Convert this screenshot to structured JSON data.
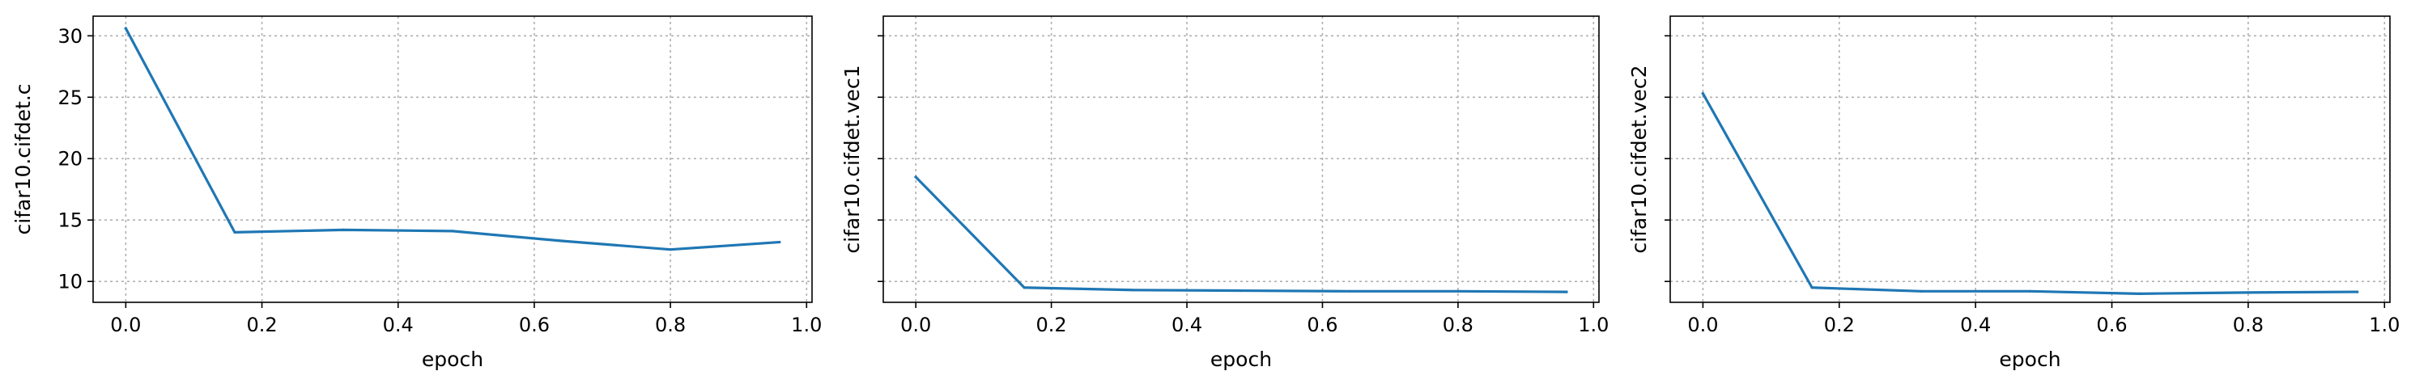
{
  "figure": {
    "line_color": "#1f77b4",
    "grid_color": "#b0b0b0",
    "grid": true,
    "shared_y_axis": true
  },
  "chart_data": [
    {
      "type": "line",
      "xlabel": "epoch",
      "ylabel": "cifar10.cifdet.c",
      "xlim": [
        -0.048,
        1.008
      ],
      "ylim": [
        8.3,
        31.6
      ],
      "xticks": [
        0.0,
        0.2,
        0.4,
        0.6,
        0.8,
        1.0
      ],
      "xtick_labels": [
        "0.0",
        "0.2",
        "0.4",
        "0.6",
        "0.8",
        "1.0"
      ],
      "yticks": [
        10,
        15,
        20,
        25,
        30
      ],
      "ytick_labels": [
        "10",
        "15",
        "20",
        "25",
        "30"
      ],
      "show_ytick_labels": true,
      "x": [
        0.0,
        0.16,
        0.32,
        0.48,
        0.64,
        0.8,
        0.96
      ],
      "y": [
        30.6,
        14.0,
        14.2,
        14.1,
        13.3,
        12.6,
        13.2
      ]
    },
    {
      "type": "line",
      "xlabel": "epoch",
      "ylabel": "cifar10.cifdet.vec1",
      "xlim": [
        -0.048,
        1.008
      ],
      "ylim": [
        8.3,
        31.6
      ],
      "xticks": [
        0.0,
        0.2,
        0.4,
        0.6,
        0.8,
        1.0
      ],
      "xtick_labels": [
        "0.0",
        "0.2",
        "0.4",
        "0.6",
        "0.8",
        "1.0"
      ],
      "yticks": [
        10,
        15,
        20,
        25,
        30
      ],
      "ytick_labels": [
        "",
        "",
        "",
        "",
        ""
      ],
      "show_ytick_labels": false,
      "x": [
        0.0,
        0.16,
        0.32,
        0.48,
        0.64,
        0.8,
        0.96
      ],
      "y": [
        18.5,
        9.5,
        9.3,
        9.25,
        9.2,
        9.2,
        9.15
      ]
    },
    {
      "type": "line",
      "xlabel": "epoch",
      "ylabel": "cifar10.cifdet.vec2",
      "xlim": [
        -0.048,
        1.008
      ],
      "ylim": [
        8.3,
        31.6
      ],
      "xticks": [
        0.0,
        0.2,
        0.4,
        0.6,
        0.8,
        1.0
      ],
      "xtick_labels": [
        "0.0",
        "0.2",
        "0.4",
        "0.6",
        "0.8",
        "1.0"
      ],
      "yticks": [
        10,
        15,
        20,
        25,
        30
      ],
      "ytick_labels": [
        "",
        "",
        "",
        "",
        ""
      ],
      "show_ytick_labels": false,
      "x": [
        0.0,
        0.16,
        0.32,
        0.48,
        0.64,
        0.8,
        0.96
      ],
      "y": [
        25.3,
        9.5,
        9.2,
        9.2,
        9.0,
        9.1,
        9.15
      ]
    }
  ]
}
